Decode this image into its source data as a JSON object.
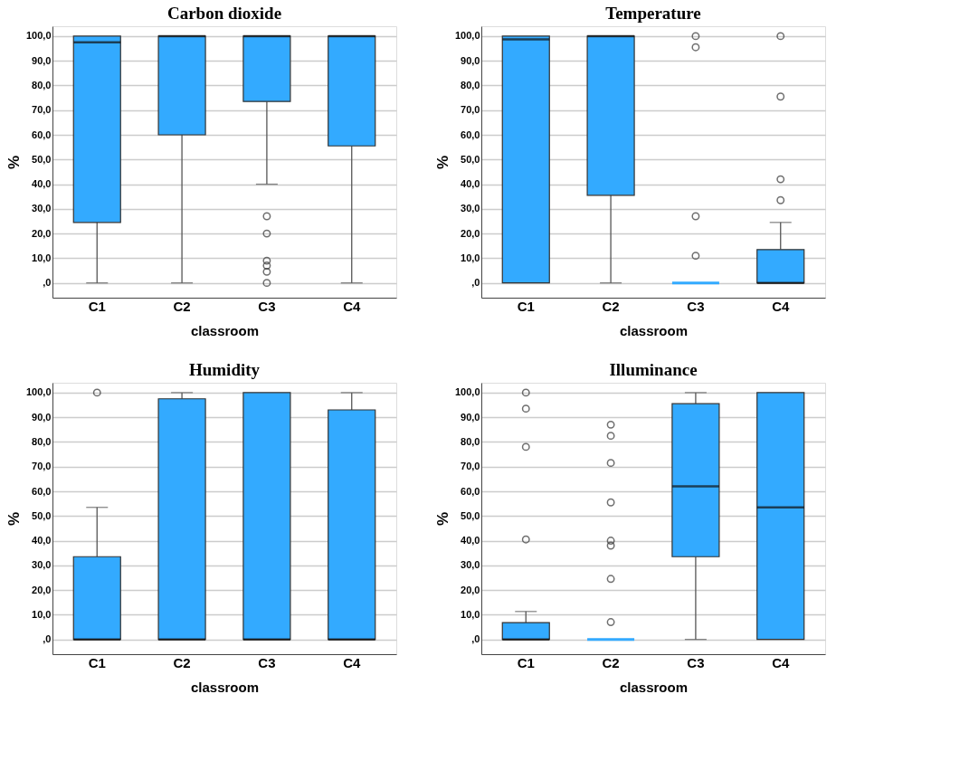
{
  "chart_data": [
    {
      "type": "box",
      "title": "Carbon dioxide",
      "xlabel": "classroom",
      "ylabel": "%",
      "categories": [
        "C1",
        "C2",
        "C3",
        "C4"
      ],
      "ylim": [
        -6,
        104
      ],
      "yticks": [
        {
          "value": 0,
          "label": ",0"
        },
        {
          "value": 10,
          "label": "10,0"
        },
        {
          "value": 20,
          "label": "20,0"
        },
        {
          "value": 30,
          "label": "30,0"
        },
        {
          "value": 40,
          "label": "40,0"
        },
        {
          "value": 50,
          "label": "50,0"
        },
        {
          "value": 60,
          "label": "60,0"
        },
        {
          "value": 70,
          "label": "70,0"
        },
        {
          "value": 80,
          "label": "80,0"
        },
        {
          "value": 90,
          "label": "90,0"
        },
        {
          "value": 100,
          "label": "100,0"
        }
      ],
      "grid": "y",
      "marker": "circle",
      "series": [
        {
          "color": "#33aaff",
          "boxes": [
            {
              "low": 0,
              "q1": 24.5,
              "median": 97.5,
              "q3": 100,
              "high": 100
            },
            {
              "low": 0,
              "q1": 60,
              "median": 100,
              "q3": 100,
              "high": 100
            },
            {
              "low": 40,
              "q1": 73.5,
              "median": 100,
              "q3": 100,
              "high": 100,
              "outliers": [
                27,
                20,
                9,
                7,
                4.5,
                0
              ]
            },
            {
              "low": 0,
              "q1": 55.5,
              "median": 100,
              "q3": 100,
              "high": 100
            }
          ]
        }
      ]
    },
    {
      "type": "box",
      "title": "Temperature",
      "xlabel": "classroom",
      "ylabel": "%",
      "categories": [
        "C1",
        "C2",
        "C3",
        "C4"
      ],
      "ylim": [
        -6,
        104
      ],
      "yticks": [
        {
          "value": 0,
          "label": ",0"
        },
        {
          "value": 10,
          "label": "10,0"
        },
        {
          "value": 20,
          "label": "20,0"
        },
        {
          "value": 30,
          "label": "30,0"
        },
        {
          "value": 40,
          "label": "40,0"
        },
        {
          "value": 50,
          "label": "50,0"
        },
        {
          "value": 60,
          "label": "60,0"
        },
        {
          "value": 70,
          "label": "70,0"
        },
        {
          "value": 80,
          "label": "80,0"
        },
        {
          "value": 90,
          "label": "90,0"
        },
        {
          "value": 100,
          "label": "100,0"
        }
      ],
      "grid": "y",
      "marker": "circle",
      "series": [
        {
          "color": "#33aaff",
          "boxes": [
            {
              "low": 0,
              "q1": 0,
              "median": 98.7,
              "q3": 100,
              "high": 100
            },
            {
              "low": 0,
              "q1": 35.5,
              "median": 100,
              "q3": 100,
              "high": 100
            },
            {
              "low": 0,
              "q1": 0,
              "median": 0,
              "q3": 0,
              "high": 0,
              "outliers": [
                100,
                95.5,
                27,
                11
              ]
            },
            {
              "low": 0,
              "q1": 0,
              "median": 0,
              "q3": 13.5,
              "high": 24.5,
              "outliers": [
                100,
                75.5,
                42,
                33.5
              ]
            }
          ]
        }
      ]
    },
    {
      "type": "box",
      "title": "Humidity",
      "xlabel": "classroom",
      "ylabel": "%",
      "categories": [
        "C1",
        "C2",
        "C3",
        "C4"
      ],
      "ylim": [
        -6,
        104
      ],
      "yticks": [
        {
          "value": 0,
          "label": ",0"
        },
        {
          "value": 10,
          "label": "10,0"
        },
        {
          "value": 20,
          "label": "20,0"
        },
        {
          "value": 30,
          "label": "30,0"
        },
        {
          "value": 40,
          "label": "40,0"
        },
        {
          "value": 50,
          "label": "50,0"
        },
        {
          "value": 60,
          "label": "60,0"
        },
        {
          "value": 70,
          "label": "70,0"
        },
        {
          "value": 80,
          "label": "80,0"
        },
        {
          "value": 90,
          "label": "90,0"
        },
        {
          "value": 100,
          "label": "100,0"
        }
      ],
      "grid": "y",
      "marker": "circle",
      "series": [
        {
          "color": "#33aaff",
          "boxes": [
            {
              "low": 0,
              "q1": 0,
              "median": 0,
              "q3": 33.5,
              "high": 53.5,
              "outliers": [
                100
              ]
            },
            {
              "low": 0,
              "q1": 0,
              "median": 0,
              "q3": 97.5,
              "high": 100
            },
            {
              "low": 0,
              "q1": 0,
              "median": 0,
              "q3": 100,
              "high": 100
            },
            {
              "low": 0,
              "q1": 0,
              "median": 0,
              "q3": 93,
              "high": 100
            }
          ]
        }
      ]
    },
    {
      "type": "box",
      "title": "Illuminance",
      "xlabel": "classroom",
      "ylabel": "%",
      "categories": [
        "C1",
        "C2",
        "C3",
        "C4"
      ],
      "ylim": [
        -6,
        104
      ],
      "yticks": [
        {
          "value": 0,
          "label": ",0"
        },
        {
          "value": 10,
          "label": "10,0"
        },
        {
          "value": 20,
          "label": "20,0"
        },
        {
          "value": 30,
          "label": "30,0"
        },
        {
          "value": 40,
          "label": "40,0"
        },
        {
          "value": 50,
          "label": "50,0"
        },
        {
          "value": 60,
          "label": "60,0"
        },
        {
          "value": 70,
          "label": "70,0"
        },
        {
          "value": 80,
          "label": "80,0"
        },
        {
          "value": 90,
          "label": "90,0"
        },
        {
          "value": 100,
          "label": "100,0"
        }
      ],
      "grid": "y",
      "marker": "circle",
      "series": [
        {
          "color": "#33aaff",
          "boxes": [
            {
              "low": 0,
              "q1": 0,
              "median": 0,
              "q3": 6.8,
              "high": 11.3,
              "outliers": [
                100,
                93.5,
                78,
                40.5
              ]
            },
            {
              "low": 0,
              "q1": 0,
              "median": 0,
              "q3": 0,
              "high": 0,
              "outliers": [
                87,
                82.5,
                71.5,
                55.5,
                40,
                38,
                24.5,
                7
              ]
            },
            {
              "low": 0,
              "q1": 33.5,
              "median": 62,
              "q3": 95.5,
              "high": 100
            },
            {
              "low": 0,
              "q1": 0,
              "median": 53.5,
              "q3": 100,
              "high": 100
            }
          ]
        }
      ]
    }
  ]
}
